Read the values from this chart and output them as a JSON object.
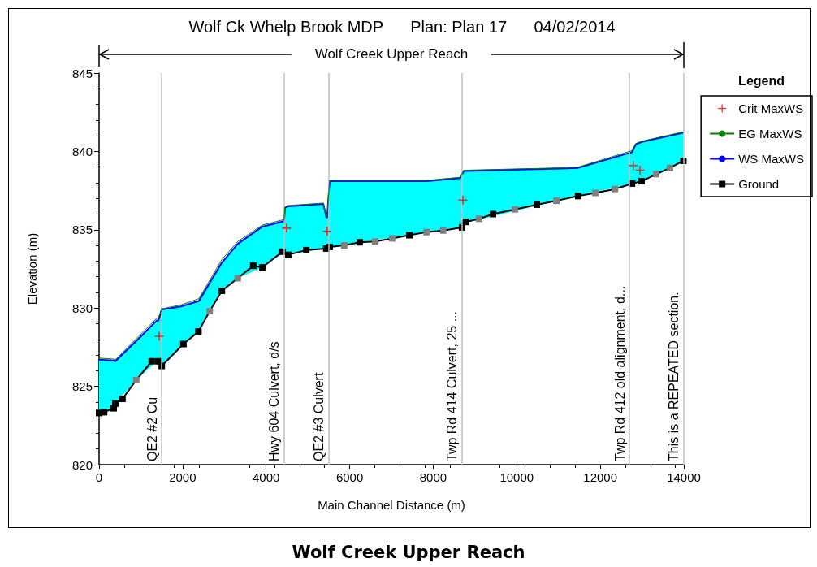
{
  "chart_data": {
    "type": "line",
    "title": "Wolf Ck Whelp Brook MDP      Plan: Plan 17      04/02/2014",
    "xlabel": "Main Channel Distance (m)",
    "ylabel": "Elevation (m)",
    "legend_title": "Legend",
    "legend": "right",
    "grid": false,
    "xlim": [
      0,
      14000
    ],
    "xticks": [
      0,
      2000,
      4000,
      6000,
      8000,
      10000,
      12000,
      14000
    ],
    "ylim": [
      820,
      845
    ],
    "yticks": [
      820,
      825,
      830,
      835,
      840,
      845
    ],
    "annotations": [
      "Wolf Creek Upper Reach",
      "Wolf Creek Upper Reach"
    ],
    "ref_lines": [
      {
        "axis": "x",
        "value": 1500,
        "label": "QE2 #2 Cu",
        "color": "#c0c0c0"
      },
      {
        "axis": "x",
        "value": 4420,
        "label": "Hwy 604 Culvert, d/s",
        "color": "#c0c0c0"
      },
      {
        "axis": "x",
        "value": 5500,
        "label": "QE2 #3 Culvert",
        "color": "#c0c0c0"
      },
      {
        "axis": "x",
        "value": 8680,
        "label": "Twp Rd 414 Culvert, 25 ...",
        "color": "#c0c0c0"
      },
      {
        "axis": "x",
        "value": 12700,
        "label": "Twp Rd 412 old alignment, d...",
        "color": "#c0c0c0"
      },
      {
        "axis": "x",
        "value": 13990,
        "label": "This is a REPEATED section.",
        "color": "#c0c0c0"
      }
    ],
    "series": [
      {
        "name": "Crit MaxWS",
        "type": "scatter",
        "marker": "cross",
        "color": "#ff0000",
        "x": [
          1440,
          4490,
          5460,
          8710,
          12790,
          12950
        ],
        "values": [
          828.2,
          835.1,
          834.9,
          836.9,
          839.1,
          838.8
        ]
      },
      {
        "name": "EG MaxWS",
        "marker": "none",
        "color": "#008000",
        "x": [
          0,
          330,
          390,
          930,
          1380,
          1420,
          1500,
          1960,
          2390,
          2940,
          3320,
          3910,
          4430,
          4450,
          4530,
          5370,
          5440,
          5460,
          5520,
          7840,
          8650,
          8730,
          11040,
          11470,
          12760,
          12850,
          12990,
          13990
        ],
        "values": [
          826.8,
          826.75,
          826.7,
          828.15,
          829.35,
          829.35,
          829.95,
          830.2,
          830.6,
          833.1,
          834.25,
          835.3,
          835.65,
          836.45,
          836.55,
          836.7,
          835.85,
          835.85,
          838.15,
          838.15,
          838.35,
          838.8,
          838.95,
          839.0,
          840.05,
          840.5,
          840.65,
          841.25
        ]
      },
      {
        "name": "WS MaxWS",
        "marker": "none",
        "color": "#0000ff",
        "lower": [
          823.3,
          823.55,
          823.9,
          825.5,
          826.6,
          826.6,
          826.3,
          827.55,
          828.55,
          831.1,
          831.9,
          832.6,
          833.55,
          833.5,
          833.4,
          833.8,
          833.8,
          833.85,
          833.9,
          834.85,
          835.15,
          835.4,
          836.9,
          837.15,
          837.95,
          838.0,
          838.1,
          839.4
        ],
        "upper": [
          826.7,
          826.65,
          826.6,
          828.0,
          829.2,
          829.2,
          829.9,
          830.1,
          830.45,
          832.9,
          834.1,
          835.2,
          835.55,
          836.4,
          836.5,
          836.65,
          835.8,
          835.8,
          838.1,
          838.1,
          838.3,
          838.75,
          838.9,
          838.95,
          839.95,
          840.45,
          840.6,
          841.2
        ],
        "x": [
          0,
          330,
          390,
          930,
          1380,
          1420,
          1500,
          1960,
          2390,
          2940,
          3320,
          3910,
          4430,
          4450,
          4530,
          5370,
          5440,
          5460,
          5520,
          7840,
          8650,
          8730,
          11040,
          11470,
          12760,
          12850,
          12990,
          13990
        ],
        "values": [
          826.7,
          826.65,
          826.6,
          828.0,
          829.2,
          829.2,
          829.9,
          830.1,
          830.45,
          832.9,
          834.1,
          835.2,
          835.55,
          836.4,
          836.5,
          836.65,
          835.8,
          835.8,
          838.1,
          838.1,
          838.3,
          838.75,
          838.9,
          838.95,
          839.95,
          840.45,
          840.6,
          841.2
        ]
      },
      {
        "name": "Ground",
        "marker": "square",
        "color": "#000000",
        "x": [
          0,
          120,
          350,
          390,
          560,
          890,
          1260,
          1420,
          1500,
          2020,
          2380,
          2650,
          2940,
          3320,
          3690,
          3910,
          4390,
          4530,
          4960,
          5440,
          5520,
          5870,
          6240,
          6610,
          7020,
          7430,
          7840,
          8240,
          8690,
          8770,
          9100,
          9430,
          9960,
          10480,
          10950,
          11470,
          11880,
          12350,
          12760,
          12990,
          13340,
          13670,
          13990
        ],
        "values": [
          823.3,
          823.35,
          823.6,
          823.9,
          824.2,
          825.4,
          826.6,
          826.6,
          826.3,
          827.7,
          828.5,
          829.8,
          831.1,
          831.9,
          832.7,
          832.6,
          833.6,
          833.4,
          833.7,
          833.8,
          833.9,
          834.0,
          834.2,
          834.25,
          834.45,
          834.65,
          834.85,
          834.95,
          835.15,
          835.5,
          835.7,
          836.0,
          836.3,
          836.6,
          836.85,
          837.15,
          837.35,
          837.6,
          837.95,
          838.1,
          838.55,
          838.95,
          839.4
        ],
        "colors": [
          "#000000",
          "#000000",
          "#000000",
          "#000000",
          "#000000",
          "#808080",
          "#000000",
          "#000000",
          "#000000",
          "#000000",
          "#000000",
          "#808080",
          "#000000",
          "#808080",
          "#000000",
          "#000000",
          "#000000",
          "#000000",
          "#000000",
          "#000000",
          "#000000",
          "#808080",
          "#000000",
          "#808080",
          "#808080",
          "#000000",
          "#808080",
          "#808080",
          "#000000",
          "#000000",
          "#808080",
          "#000000",
          "#808080",
          "#000000",
          "#808080",
          "#000000",
          "#808080",
          "#808080",
          "#000000",
          "#000000",
          "#808080",
          "#808080",
          "#000000"
        ]
      }
    ]
  }
}
